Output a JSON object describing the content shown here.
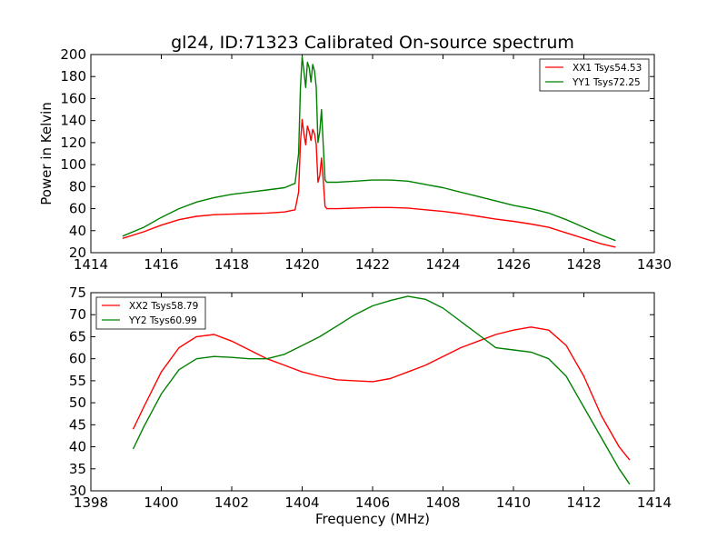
{
  "chart_data": [
    {
      "type": "line",
      "title": "gl24, ID:71323 Calibrated On-source spectrum",
      "xlabel": "",
      "ylabel": "Power in Kelvin",
      "xlim": [
        1414,
        1430
      ],
      "ylim": [
        20,
        200
      ],
      "xticks": [
        "1414",
        "1416",
        "1418",
        "1420",
        "1422",
        "1424",
        "1426",
        "1428",
        "1430"
      ],
      "yticks": [
        "20",
        "40",
        "60",
        "80",
        "100",
        "120",
        "140",
        "160",
        "180",
        "200"
      ],
      "grid": false,
      "legend_position": "top-right",
      "series": [
        {
          "name": "XX1 Tsys54.53",
          "color": "#ff0000",
          "x": [
            1414.9,
            1415.5,
            1416.0,
            1416.5,
            1417.0,
            1417.5,
            1418.0,
            1418.5,
            1419.0,
            1419.5,
            1419.8,
            1419.9,
            1419.95,
            1420.0,
            1420.05,
            1420.1,
            1420.15,
            1420.2,
            1420.25,
            1420.3,
            1420.35,
            1420.4,
            1420.45,
            1420.5,
            1420.55,
            1420.6,
            1420.65,
            1420.7,
            1420.8,
            1421.0,
            1421.5,
            1422.0,
            1422.5,
            1423.0,
            1423.5,
            1424.0,
            1424.5,
            1425.0,
            1425.5,
            1426.0,
            1426.5,
            1427.0,
            1427.5,
            1428.0,
            1428.5,
            1428.9
          ],
          "y": [
            33,
            39,
            45,
            50,
            53,
            54.5,
            55,
            55.5,
            56,
            57,
            59,
            75,
            120,
            141,
            128,
            118,
            135,
            130,
            122,
            132,
            128,
            118,
            84,
            90,
            106,
            86,
            62,
            60,
            60,
            60,
            60.5,
            61,
            61,
            60.5,
            59,
            57.5,
            55.5,
            53,
            50.5,
            48.5,
            46,
            43,
            38,
            33,
            28,
            25
          ]
        },
        {
          "name": "YY1 Tsys72.25",
          "color": "#008000",
          "x": [
            1414.9,
            1415.5,
            1416.0,
            1416.5,
            1417.0,
            1417.5,
            1418.0,
            1418.5,
            1419.0,
            1419.5,
            1419.8,
            1419.9,
            1419.95,
            1420.0,
            1420.05,
            1420.1,
            1420.15,
            1420.2,
            1420.25,
            1420.3,
            1420.35,
            1420.4,
            1420.45,
            1420.5,
            1420.55,
            1420.6,
            1420.65,
            1420.7,
            1420.8,
            1421.0,
            1421.5,
            1422.0,
            1422.5,
            1423.0,
            1423.5,
            1424.0,
            1424.5,
            1425.0,
            1425.5,
            1426.0,
            1426.5,
            1427.0,
            1427.5,
            1428.0,
            1428.5,
            1428.9
          ],
          "y": [
            35,
            43,
            52,
            60,
            66,
            70,
            73,
            75,
            77,
            79,
            83,
            110,
            170,
            198,
            185,
            170,
            193,
            188,
            175,
            191,
            185,
            170,
            120,
            130,
            150,
            118,
            86,
            84,
            84,
            84,
            85,
            86,
            86,
            85,
            82,
            79,
            75,
            71,
            67,
            63,
            60,
            56,
            50,
            43,
            36,
            31
          ]
        }
      ]
    },
    {
      "type": "line",
      "title": "",
      "xlabel": "Frequency (MHz)",
      "ylabel": "",
      "xlim": [
        1398,
        1414
      ],
      "ylim": [
        30,
        75
      ],
      "xticks": [
        "1398",
        "1400",
        "1402",
        "1404",
        "1406",
        "1408",
        "1410",
        "1412",
        "1414"
      ],
      "yticks": [
        "30",
        "35",
        "40",
        "45",
        "50",
        "55",
        "60",
        "65",
        "70",
        "75"
      ],
      "grid": false,
      "legend_position": "top-left",
      "series": [
        {
          "name": "XX2 Tsys58.79",
          "color": "#ff0000",
          "x": [
            1399.2,
            1399.5,
            1400.0,
            1400.5,
            1401.0,
            1401.5,
            1402.0,
            1402.5,
            1403.0,
            1403.5,
            1404.0,
            1404.5,
            1405.0,
            1405.5,
            1406.0,
            1406.5,
            1407.0,
            1407.5,
            1408.0,
            1408.5,
            1409.0,
            1409.5,
            1410.0,
            1410.5,
            1411.0,
            1411.5,
            1412.0,
            1412.5,
            1413.0,
            1413.3
          ],
          "y": [
            44,
            49,
            57,
            62.5,
            65,
            65.5,
            64,
            62,
            60,
            58.5,
            57,
            56,
            55.2,
            55,
            54.8,
            55.5,
            57,
            58.5,
            60.5,
            62.5,
            64,
            65.5,
            66.5,
            67.2,
            66.5,
            63,
            56,
            47,
            40,
            37
          ]
        },
        {
          "name": "YY2 Tsys60.99",
          "color": "#008000",
          "x": [
            1399.2,
            1399.5,
            1400.0,
            1400.5,
            1401.0,
            1401.5,
            1402.0,
            1402.5,
            1403.0,
            1403.5,
            1404.0,
            1404.5,
            1405.0,
            1405.5,
            1406.0,
            1406.5,
            1407.0,
            1407.5,
            1408.0,
            1408.5,
            1409.0,
            1409.5,
            1410.0,
            1410.5,
            1411.0,
            1411.5,
            1412.0,
            1412.5,
            1413.0,
            1413.3
          ],
          "y": [
            39.5,
            44.5,
            52,
            57.5,
            60,
            60.5,
            60.3,
            60,
            60,
            61,
            63,
            65,
            67.5,
            70,
            72,
            73.2,
            74.2,
            73.5,
            71.5,
            68.5,
            65.5,
            62.5,
            62,
            61.5,
            60,
            56,
            49,
            42,
            35,
            31.5
          ]
        }
      ]
    }
  ]
}
